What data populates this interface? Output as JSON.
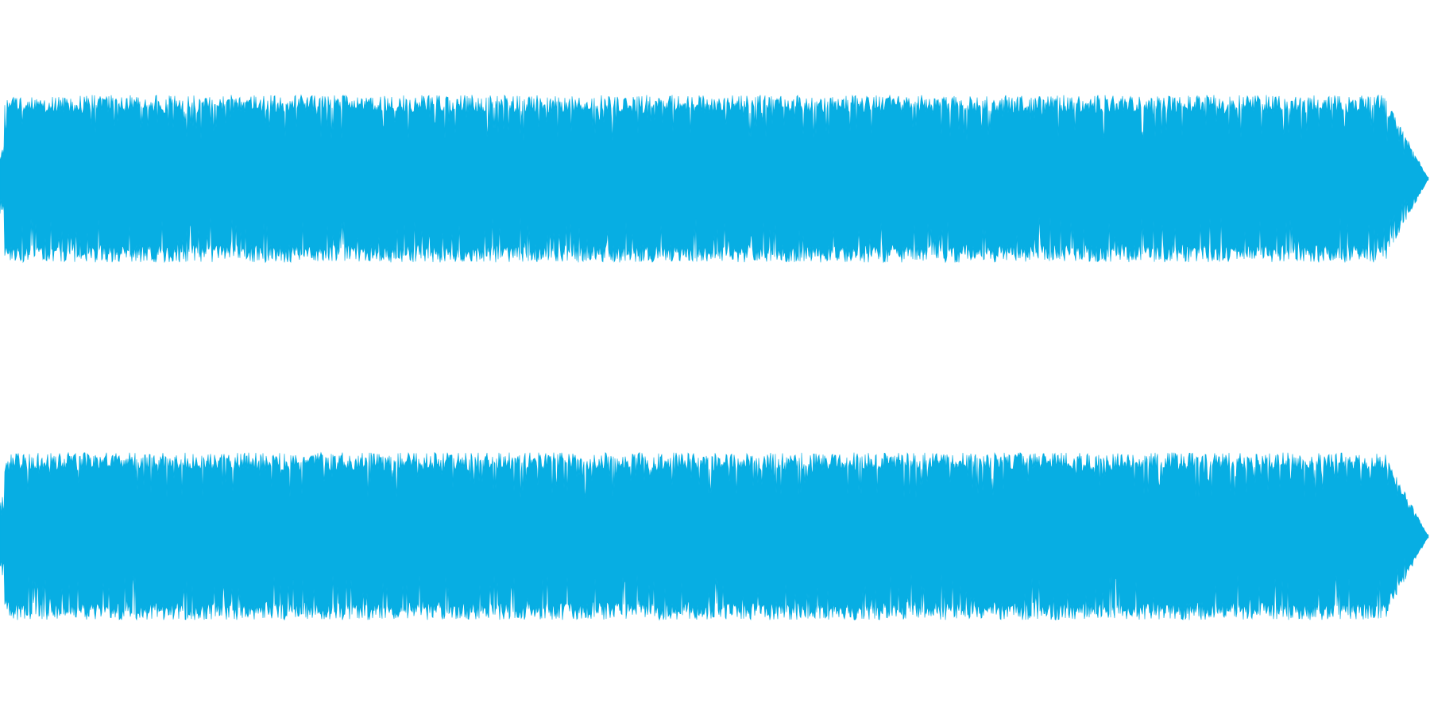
{
  "waveform": {
    "color": "#07AEE3",
    "background": "#FFFFFF",
    "channels": [
      {
        "label": ""
      },
      {
        "label": ""
      }
    ]
  }
}
